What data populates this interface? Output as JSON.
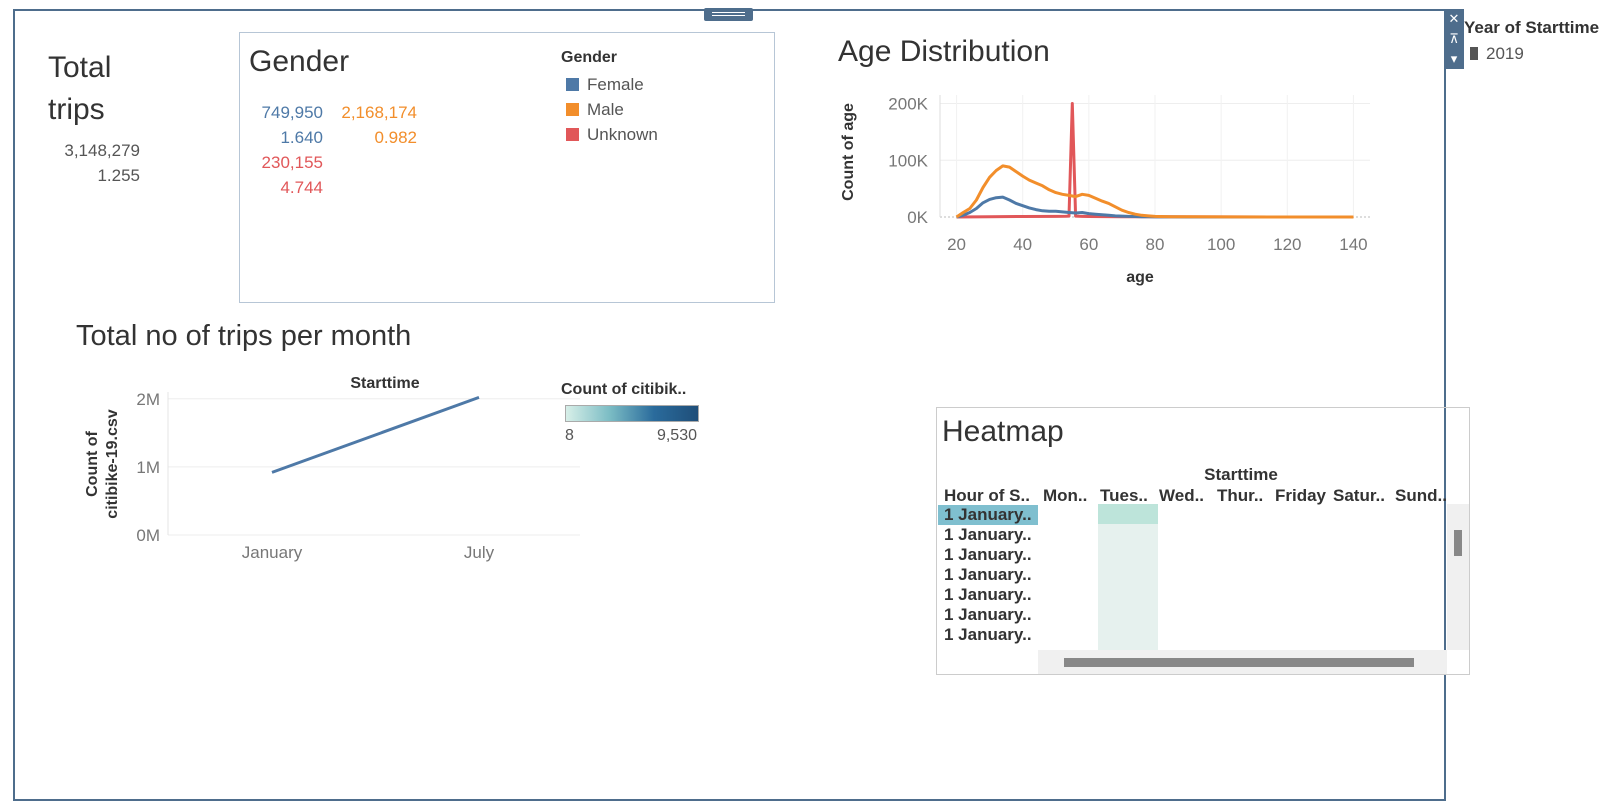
{
  "total_trips": {
    "title_line1": "Total",
    "title_line2": "trips",
    "count": "3,148,279",
    "ratio": "1.255"
  },
  "gender_panel": {
    "title": "Gender",
    "female_count": "749,950",
    "female_ratio": "1.640",
    "male_count": "2,168,174",
    "male_ratio": "0.982",
    "unknown_count": "230,155",
    "unknown_ratio": "4.744",
    "legend_title": "Gender",
    "legend": [
      {
        "label": "Female",
        "color": "#4e79a7"
      },
      {
        "label": "Male",
        "color": "#f28e2b"
      },
      {
        "label": "Unknown",
        "color": "#e15759"
      }
    ]
  },
  "filter": {
    "title": "Year of Starttime",
    "value": "2019"
  },
  "side_tool": {
    "close": "✕",
    "pin": "⊼",
    "menu": "▾"
  },
  "age_chart": {
    "title": "Age Distribution",
    "ylabel": "Count of age",
    "xlabel": "age",
    "y_ticks": [
      "200K",
      "100K",
      "0K"
    ],
    "x_ticks": [
      "20",
      "40",
      "60",
      "80",
      "100",
      "120",
      "140"
    ]
  },
  "trips_chart": {
    "title": "Total no of trips per month",
    "header": "Starttime",
    "ylabel_line1": "Count of",
    "ylabel_line2": "citibike-19.csv",
    "y_ticks": [
      "2M",
      "1M",
      "0M"
    ],
    "x_ticks": [
      "January",
      "July"
    ],
    "color_legend_title": "Count of citibik..",
    "color_legend_min": "8",
    "color_legend_max": "9,530"
  },
  "heatmap": {
    "title": "Heatmap",
    "header": "Starttime",
    "row_header": "Hour of S..",
    "columns": [
      "Mon..",
      "Tues..",
      "Wed..",
      "Thur..",
      "Friday",
      "Satur..",
      "Sund.."
    ],
    "rows": [
      "1 January..",
      "1 January..",
      "1 January..",
      "1 January..",
      "1 January..",
      "1 January..",
      "1 January.."
    ]
  },
  "chart_data": [
    {
      "type": "line",
      "title": "Age Distribution",
      "xlabel": "age",
      "ylabel": "Count of age",
      "xlim": [
        15,
        145
      ],
      "ylim": [
        0,
        215000
      ],
      "series": [
        {
          "name": "Male",
          "color": "#f28e2b",
          "x": [
            20,
            22,
            24,
            26,
            28,
            30,
            32,
            34,
            36,
            38,
            40,
            42,
            44,
            46,
            48,
            50,
            52,
            54,
            56,
            58,
            60,
            62,
            64,
            66,
            68,
            70,
            72,
            74,
            76,
            78,
            80,
            85,
            90,
            100,
            120,
            140
          ],
          "y": [
            0,
            8000,
            15000,
            30000,
            52000,
            70000,
            82000,
            90000,
            88000,
            80000,
            72000,
            65000,
            60000,
            55000,
            48000,
            43000,
            40000,
            38000,
            36000,
            40000,
            38000,
            33000,
            28000,
            24000,
            18000,
            12000,
            8000,
            5000,
            3000,
            2000,
            1000,
            500,
            300,
            100,
            50,
            0
          ]
        },
        {
          "name": "Female",
          "color": "#4e79a7",
          "x": [
            20,
            22,
            24,
            26,
            28,
            30,
            32,
            34,
            36,
            38,
            40,
            42,
            44,
            46,
            48,
            50,
            52,
            54,
            56,
            58,
            60,
            62,
            64,
            66,
            68,
            70,
            72,
            74,
            76,
            78,
            80,
            85,
            90,
            100,
            120,
            140
          ],
          "y": [
            0,
            3000,
            8000,
            15000,
            25000,
            31000,
            34000,
            35000,
            30000,
            24000,
            20000,
            16000,
            13000,
            11000,
            10000,
            10000,
            9000,
            8000,
            7000,
            8000,
            6000,
            5000,
            4000,
            3000,
            2000,
            1500,
            1000,
            800,
            500,
            300,
            200,
            100,
            80,
            50,
            20,
            0
          ]
        },
        {
          "name": "Unknown",
          "color": "#e15759",
          "x": [
            20,
            30,
            40,
            50,
            53,
            54,
            55,
            56,
            57,
            58,
            60,
            70,
            80,
            100,
            120,
            140
          ],
          "y": [
            0,
            500,
            800,
            1000,
            1200,
            1500,
            200000,
            1500,
            1200,
            1000,
            800,
            500,
            300,
            100,
            50,
            0
          ]
        }
      ]
    },
    {
      "type": "line",
      "title": "Total no of trips per month",
      "xlabel": "Starttime",
      "ylabel": "Count of citibike-19.csv",
      "ylim": [
        0,
        2100000
      ],
      "categories": [
        "January",
        "July"
      ],
      "series": [
        {
          "values": [
            920000,
            2020000
          ],
          "color": "#4e79a7"
        }
      ]
    }
  ]
}
